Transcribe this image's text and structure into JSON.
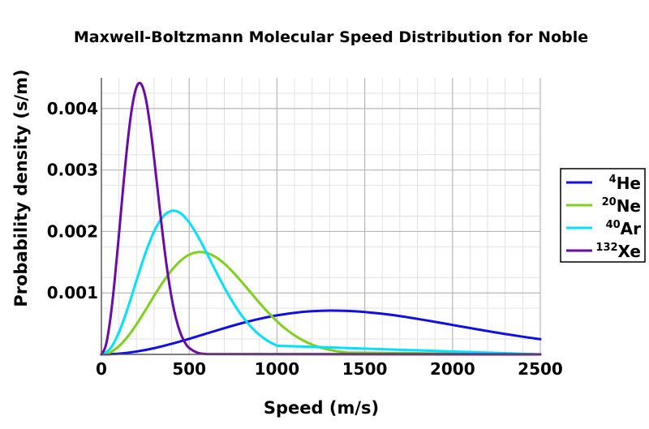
{
  "chart_data": {
    "type": "line",
    "title": "Maxwell-Boltzmann Molecular Speed Distribution for Noble",
    "xlabel": "Speed (m/s)",
    "ylabel": "Probability density (s/m)",
    "xlim": [
      0,
      2500
    ],
    "ylim": [
      0,
      0.0045
    ],
    "x_ticks": [
      0,
      500,
      1000,
      1500,
      2000,
      2500
    ],
    "x_tick_labels": [
      "0",
      "500",
      "1000",
      "1500",
      "2000",
      "2500"
    ],
    "y_ticks": [
      0.001,
      0.002,
      0.003,
      0.004
    ],
    "y_tick_labels": [
      "0.001",
      "0.002",
      "0.003",
      "0.004"
    ],
    "grid": true,
    "legend_position": "right",
    "series": [
      {
        "name": "He",
        "mass_number": "4",
        "color": "#1010e0",
        "x": [
          0,
          100,
          200,
          300,
          400,
          500,
          600,
          700,
          800,
          900,
          1000,
          1100,
          1200,
          1300,
          1400,
          1500,
          1600,
          1700,
          1800,
          1900,
          2000,
          2100,
          2200,
          2300,
          2400,
          2500
        ],
        "y": [
          0,
          1.2e-05,
          4.7e-05,
          0.000101,
          0.000172,
          0.000253,
          0.00034,
          0.000427,
          0.000508,
          0.000578,
          0.000635,
          0.000677,
          0.000703,
          0.000713,
          0.000708,
          0.00069,
          0.000661,
          0.000623,
          0.000578,
          0.00053,
          0.000479,
          0.000429,
          0.000379,
          0.000332,
          0.000288,
          0.000247
        ]
      },
      {
        "name": "Ne",
        "mass_number": "20",
        "color": "#7fd01c",
        "x": [
          0,
          50,
          100,
          150,
          200,
          250,
          300,
          350,
          400,
          450,
          500,
          550,
          600,
          650,
          700,
          750,
          800,
          850,
          900,
          950,
          1000,
          1050,
          1100,
          1150,
          1200,
          1250,
          1300,
          1350,
          1400
        ],
        "y": [
          0,
          3.39e-05,
          0.000133,
          0.000289,
          0.000489,
          0.000716,
          0.000951,
          0.001174,
          0.001369,
          0.001521,
          0.001622,
          0.001665,
          0.001651,
          0.001586,
          0.001478,
          0.001337,
          0.001177,
          0.001008,
          0.00084,
          0.000682,
          0.000539,
          0.000414,
          0.00031,
          0.000226,
          0.00016,
          0.00011,
          7.37e-05,
          4.8e-05,
          3.04e-05
        ]
      },
      {
        "name": "Ar",
        "mass_number": "40",
        "color": "#00e0ff",
        "x": [
          0,
          50,
          100,
          150,
          200,
          250,
          300,
          350,
          400,
          450,
          500,
          550,
          600,
          650,
          700,
          750,
          800,
          850,
          900,
          950,
          1000
        ],
        "y": [
          0,
          9.4e-05,
          0.00036,
          0.000752,
          0.001203,
          0.001641,
          0.002001,
          0.002239,
          0.002336,
          0.002298,
          0.002148,
          0.00192,
          0.001648,
          0.001364,
          0.00109,
          0.000842,
          0.000629,
          0.000455,
          0.000318,
          0.000215,
          0.000141
        ]
      },
      {
        "name": "Xe",
        "mass_number": "132",
        "color": "#6a0aa8",
        "x": [
          0,
          25,
          50,
          75,
          100,
          125,
          150,
          175,
          200,
          225,
          250,
          275,
          300,
          325,
          350,
          375,
          400,
          425,
          450,
          475,
          500,
          550,
          600
        ],
        "y": [
          0,
          0.000145,
          0.00056,
          0.00119,
          0.001954,
          0.002749,
          0.003472,
          0.004028,
          0.004351,
          0.004405,
          0.004199,
          0.003772,
          0.003196,
          0.002557,
          0.001929,
          0.001373,
          0.000922,
          0.000584,
          0.000349,
          0.000197,
          0.000105,
          2.5e-05,
          5e-06
        ]
      }
    ]
  }
}
